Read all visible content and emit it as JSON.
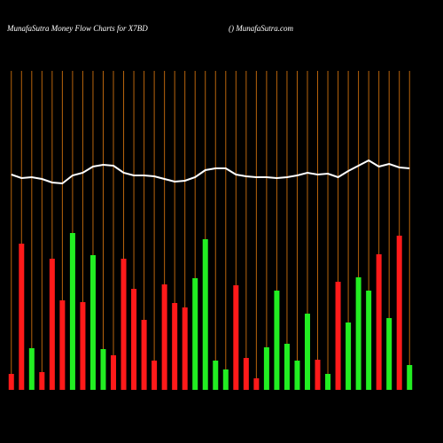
{
  "chart_data": {
    "type": "bar",
    "title": "MunafaSutra  Money Flow  Charts for X7BD",
    "subtitle": "() MunafaSutra.com",
    "categories": [
      null,
      null,
      null,
      null,
      null,
      null,
      null,
      null,
      null,
      null,
      null,
      null,
      null,
      null,
      null,
      null,
      null,
      null,
      null,
      null,
      null,
      null,
      null,
      null,
      null,
      null,
      null,
      null,
      null,
      null,
      null,
      null,
      null,
      null,
      null,
      null,
      null,
      null,
      null,
      null
    ],
    "values": [
      18,
      165,
      47,
      20,
      148,
      101,
      177,
      99,
      152,
      46,
      39,
      148,
      114,
      79,
      33,
      119,
      98,
      93,
      126,
      170,
      33,
      23,
      118,
      36,
      13,
      48,
      112,
      52,
      33,
      86,
      34,
      18,
      122,
      76,
      127,
      112,
      153,
      81,
      174,
      28
    ],
    "colors": [
      "#ff1a1a",
      "#ff1a1a",
      "#22ee22",
      "#ff1a1a",
      "#ff1a1a",
      "#ff1a1a",
      "#22ee22",
      "#ff1a1a",
      "#22ee22",
      "#22ee22",
      "#ff1a1a",
      "#ff1a1a",
      "#ff1a1a",
      "#ff1a1a",
      "#ff1a1a",
      "#ff1a1a",
      "#ff1a1a",
      "#ff1a1a",
      "#22ee22",
      "#22ee22",
      "#22ee22",
      "#22ee22",
      "#ff1a1a",
      "#ff1a1a",
      "#ff1a1a",
      "#22ee22",
      "#22ee22",
      "#22ee22",
      "#22ee22",
      "#22ee22",
      "#ff1a1a",
      "#22ee22",
      "#ff1a1a",
      "#22ee22",
      "#22ee22",
      "#22ee22",
      "#ff1a1a",
      "#22ee22",
      "#ff1a1a",
      "#22ee22"
    ],
    "line_values": [
      243,
      239,
      240,
      238,
      234,
      233,
      242,
      245,
      252,
      254,
      253,
      245,
      242,
      242,
      241,
      238,
      235,
      236,
      240,
      248,
      250,
      250,
      243,
      241,
      240,
      240,
      239,
      240,
      242,
      245,
      243,
      244,
      240,
      247,
      253,
      259,
      252,
      255,
      251,
      250
    ],
    "line_color": "#ffffff",
    "guide_color": "#b8640c",
    "ylim": [
      0,
      360
    ]
  }
}
